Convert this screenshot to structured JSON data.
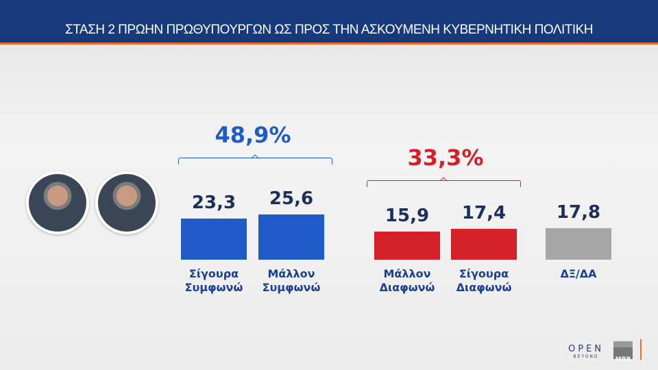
{
  "header": {
    "title": "ΣΤΑΣΗ 2 ΠΡΩΗΝ ΠΡΩΘΥΠΟΥΡΓΩΝ  ΩΣ ΠΡΟΣ ΤΗΝ ΑΣΚΟΥΜΕΝΗ ΚΥΒΕΡΝΗΤΙΚΗ ΠΟΛΙΤΙΚΗ"
  },
  "totals": {
    "agree": "48,9%",
    "disagree": "33,3%",
    "agree_color": "#1f5bc6",
    "disagree_color": "#d62027"
  },
  "chart_data": {
    "type": "bar",
    "categories": [
      "Σίγουρα\nΣυμφωνώ",
      "Μάλλον\nΣυμφωνώ",
      "Μάλλον\nΔιαφωνώ",
      "Σίγουρα\nΔιαφωνώ",
      "ΔΞ/ΔΑ"
    ],
    "values": [
      23.3,
      25.6,
      15.9,
      17.4,
      17.8
    ],
    "value_labels": [
      "23,3",
      "25,6",
      "15,9",
      "17,4",
      "17,8"
    ],
    "colors": [
      "#1f5bc6",
      "#1f5bc6",
      "#d62027",
      "#d62027",
      "#a6a6a6"
    ]
  },
  "logos": {
    "open": "OPEN",
    "open_sub": "BEYOND",
    "mrb": "MRB"
  }
}
